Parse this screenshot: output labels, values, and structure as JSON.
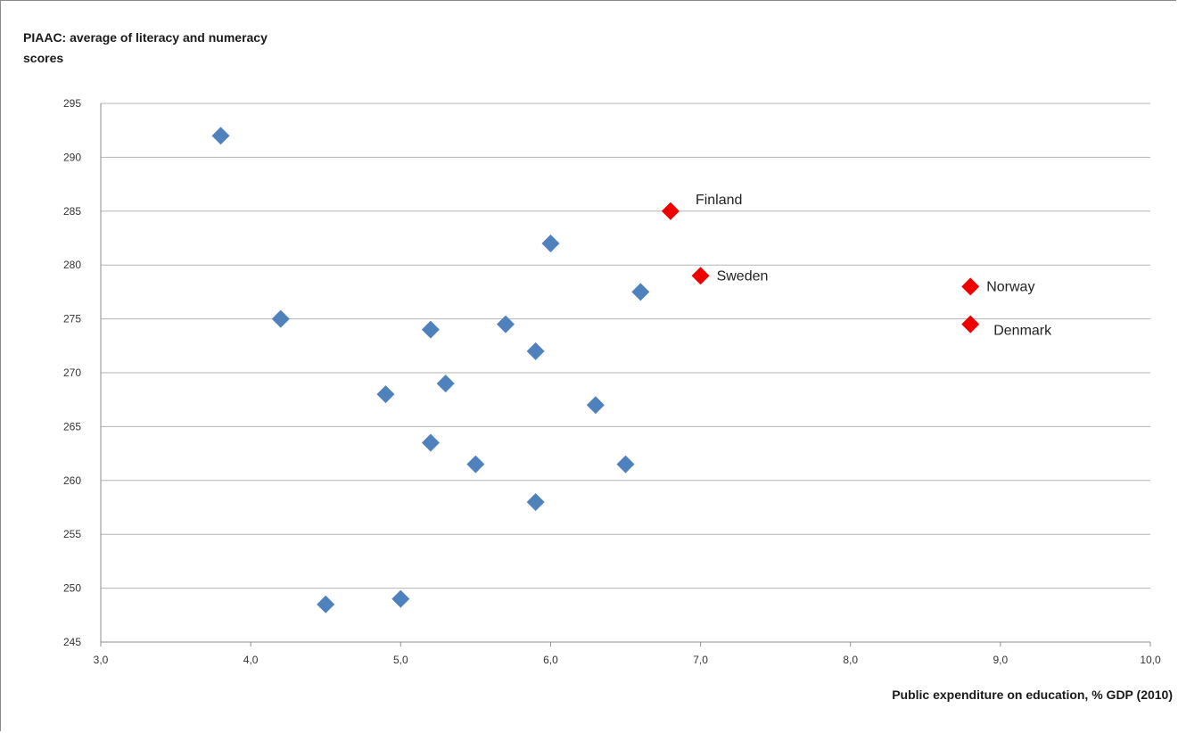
{
  "chart_data": {
    "type": "scatter",
    "title": "",
    "ylabel": "PIAAC: average of literacy and numeracy scores",
    "xlabel": "Public expenditure on education, % GDP (2010)",
    "xlim": [
      3.0,
      10.0
    ],
    "ylim": [
      245,
      295
    ],
    "xticks": [
      "3,0",
      "4,0",
      "5,0",
      "6,0",
      "7,0",
      "8,0",
      "9,0",
      "10,0"
    ],
    "yticks": [
      "295",
      "290",
      "285",
      "280",
      "275",
      "270",
      "265",
      "260",
      "255",
      "250",
      "245"
    ],
    "grid": "horizontal",
    "legend": "none",
    "colors": {
      "blue": "#4f81bd",
      "red": "#ee0000",
      "grid": "#b3b3b3"
    },
    "series": [
      {
        "color": "blue",
        "points": [
          {
            "x": 3.8,
            "y": 292
          },
          {
            "x": 4.2,
            "y": 275
          },
          {
            "x": 4.5,
            "y": 248.5
          },
          {
            "x": 4.9,
            "y": 268
          },
          {
            "x": 5.0,
            "y": 249
          },
          {
            "x": 5.2,
            "y": 274
          },
          {
            "x": 5.2,
            "y": 263.5
          },
          {
            "x": 5.3,
            "y": 269
          },
          {
            "x": 5.5,
            "y": 261.5
          },
          {
            "x": 5.7,
            "y": 274.5
          },
          {
            "x": 5.9,
            "y": 272
          },
          {
            "x": 5.9,
            "y": 258
          },
          {
            "x": 6.0,
            "y": 282
          },
          {
            "x": 6.3,
            "y": 267
          },
          {
            "x": 6.5,
            "y": 261.5
          },
          {
            "x": 6.6,
            "y": 277.5
          }
        ]
      },
      {
        "color": "red",
        "points": [
          {
            "x": 6.8,
            "y": 285,
            "label": "Finland"
          },
          {
            "x": 7.0,
            "y": 279,
            "label": "Sweden"
          },
          {
            "x": 8.8,
            "y": 278,
            "label": "Norway"
          },
          {
            "x": 8.8,
            "y": 274.5,
            "label": "Denmark"
          }
        ]
      }
    ]
  }
}
